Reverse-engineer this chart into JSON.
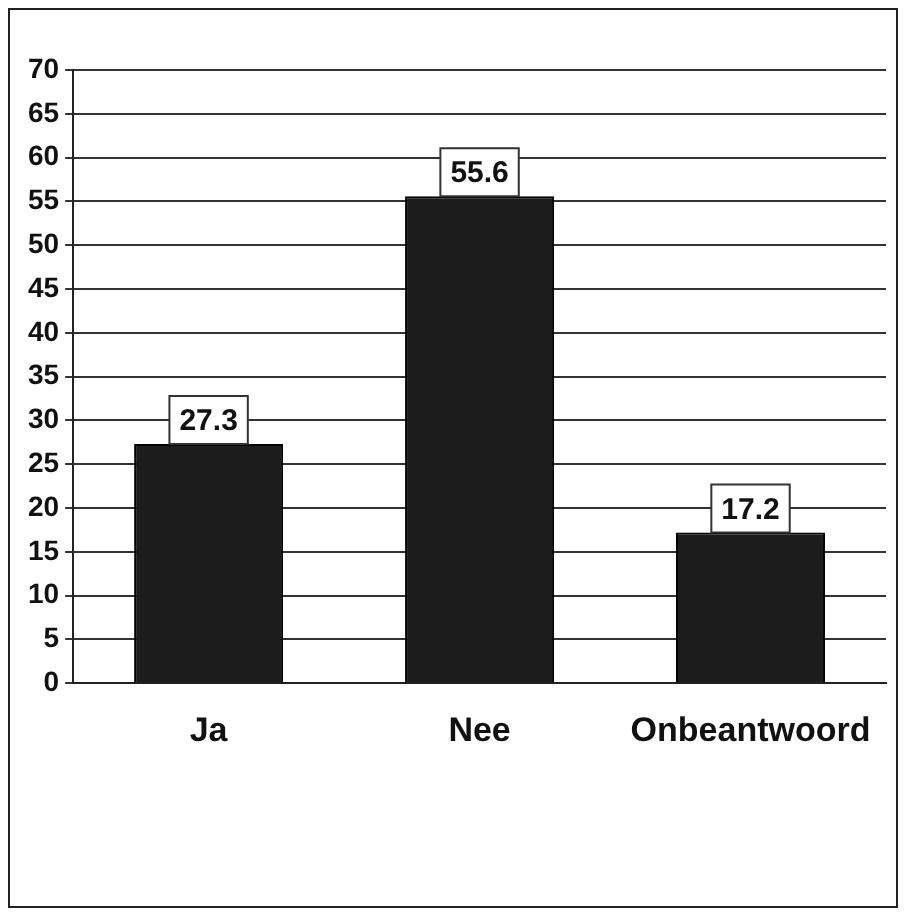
{
  "chart_data": {
    "type": "bar",
    "categories": [
      "Ja",
      "Nee",
      "Onbeantwoord"
    ],
    "values": [
      27.3,
      55.6,
      17.2
    ],
    "color": "#1c1c1c",
    "ylim": [
      0,
      70
    ],
    "yticks": [
      0,
      5,
      10,
      15,
      20,
      25,
      30,
      35,
      40,
      45,
      50,
      55,
      60,
      65,
      70
    ],
    "grid": "y",
    "data_labels": true,
    "legend": false
  }
}
